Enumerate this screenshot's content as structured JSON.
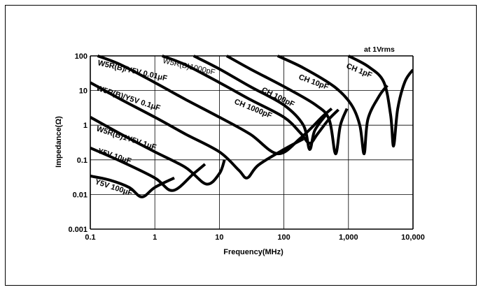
{
  "chart_data": {
    "type": "line",
    "xlabel": "Frequency(MHz)",
    "ylabel": "Impedance(Ω)",
    "xscale": "log",
    "yscale": "log",
    "xlim": [
      0.1,
      10000
    ],
    "ylim": [
      0.001,
      100
    ],
    "grid": true,
    "x_ticks": [
      "0.1",
      "1",
      "10",
      "100",
      "1,000",
      "10,000"
    ],
    "y_ticks": [
      "100",
      "10",
      "1",
      "0.1",
      "0.01",
      "0.001"
    ],
    "annotation": "at  1Vrms",
    "series": [
      {
        "name": "Y5V 100μF",
        "label_style": "bold",
        "points": [
          [
            0.1,
            0.034
          ],
          [
            0.2,
            0.026
          ],
          [
            0.4,
            0.016
          ],
          [
            0.63,
            0.0085
          ],
          [
            1.0,
            0.016
          ],
          [
            2.0,
            0.03
          ]
        ]
      },
      {
        "name": "Y5V 10μF",
        "label_style": "bold",
        "points": [
          [
            0.1,
            0.22
          ],
          [
            0.3,
            0.09
          ],
          [
            1.0,
            0.03
          ],
          [
            1.9,
            0.013
          ],
          [
            4.0,
            0.04
          ],
          [
            6.0,
            0.075
          ]
        ]
      },
      {
        "name": "W5R(B)1Y5V 1μF",
        "label_style": "bold",
        "points": [
          [
            0.1,
            1.7
          ],
          [
            0.3,
            0.55
          ],
          [
            1.0,
            0.17
          ],
          [
            3.0,
            0.06
          ],
          [
            6.3,
            0.02
          ],
          [
            10.0,
            0.04
          ],
          [
            12.0,
            0.1
          ]
        ]
      },
      {
        "name": "W5R(B)/Y5V 0.1μF",
        "label_style": "bold",
        "points": [
          [
            0.1,
            17.0
          ],
          [
            0.3,
            5.5
          ],
          [
            1.0,
            1.7
          ],
          [
            3.0,
            0.55
          ],
          [
            10.0,
            0.17
          ],
          [
            20.0,
            0.05
          ],
          [
            27.0,
            0.03
          ],
          [
            40.0,
            0.07
          ],
          [
            100.0,
            0.2
          ],
          [
            200.0,
            0.4
          ]
        ]
      },
      {
        "name": "W5R(B)/Y5V 0.01μF",
        "label_style": "bold",
        "points": [
          [
            0.13,
            100.0
          ],
          [
            0.3,
            55.0
          ],
          [
            1.0,
            17.0
          ],
          [
            3.0,
            5.5
          ],
          [
            10.0,
            1.7
          ],
          [
            30.0,
            0.55
          ],
          [
            80.0,
            0.15
          ],
          [
            180.0,
            0.42
          ],
          [
            400.0,
            1.8
          ],
          [
            550.0,
            3.0
          ]
        ]
      },
      {
        "name": "W5R(B)1000pF",
        "label_style": "light",
        "points": [
          [
            1.3,
            100.0
          ],
          [
            3.0,
            55.0
          ],
          [
            10.0,
            17.0
          ],
          [
            30.0,
            5.5
          ],
          [
            100.0,
            1.7
          ],
          [
            180.0,
            0.6
          ],
          [
            250.0,
            0.3
          ],
          [
            330.0,
            0.55
          ],
          [
            500.0,
            1.5
          ],
          [
            700.0,
            2.8
          ]
        ]
      },
      {
        "name": "CH 1000pF",
        "label_style": "bold",
        "points": [
          [
            4.0,
            100.0
          ],
          [
            10.0,
            42.0
          ],
          [
            30.0,
            13.0
          ],
          [
            100.0,
            3.8
          ],
          [
            200.0,
            1.0
          ],
          [
            250.0,
            0.2
          ],
          [
            300.0,
            0.7
          ],
          [
            450.0,
            2.0
          ]
        ]
      },
      {
        "name": "CH 100pF",
        "label_style": "bold",
        "points": [
          [
            13.0,
            100.0
          ],
          [
            30.0,
            42.0
          ],
          [
            100.0,
            13.0
          ],
          [
            300.0,
            4.0
          ],
          [
            500.0,
            1.5
          ],
          [
            630.0,
            0.15
          ],
          [
            750.0,
            1.0
          ],
          [
            950.0,
            3.0
          ]
        ]
      },
      {
        "name": "CH 10pF",
        "label_style": "bold",
        "points": [
          [
            80.0,
            100.0
          ],
          [
            200.0,
            45.0
          ],
          [
            600.0,
            13.0
          ],
          [
            1100.0,
            4.0
          ],
          [
            1500.0,
            1.0
          ],
          [
            1750.0,
            0.15
          ],
          [
            2000.0,
            1.5
          ],
          [
            3000.0,
            7.0
          ],
          [
            4000.0,
            14.0
          ]
        ]
      },
      {
        "name": "CH 1pF",
        "label_style": "bold",
        "points": [
          [
            1000.0,
            100.0
          ],
          [
            2000.0,
            50.0
          ],
          [
            3500.0,
            18.0
          ],
          [
            4500.0,
            2.0
          ],
          [
            5000.0,
            0.25
          ],
          [
            5800.0,
            3.0
          ],
          [
            7500.0,
            18.0
          ],
          [
            10000.0,
            40.0
          ]
        ]
      }
    ]
  }
}
